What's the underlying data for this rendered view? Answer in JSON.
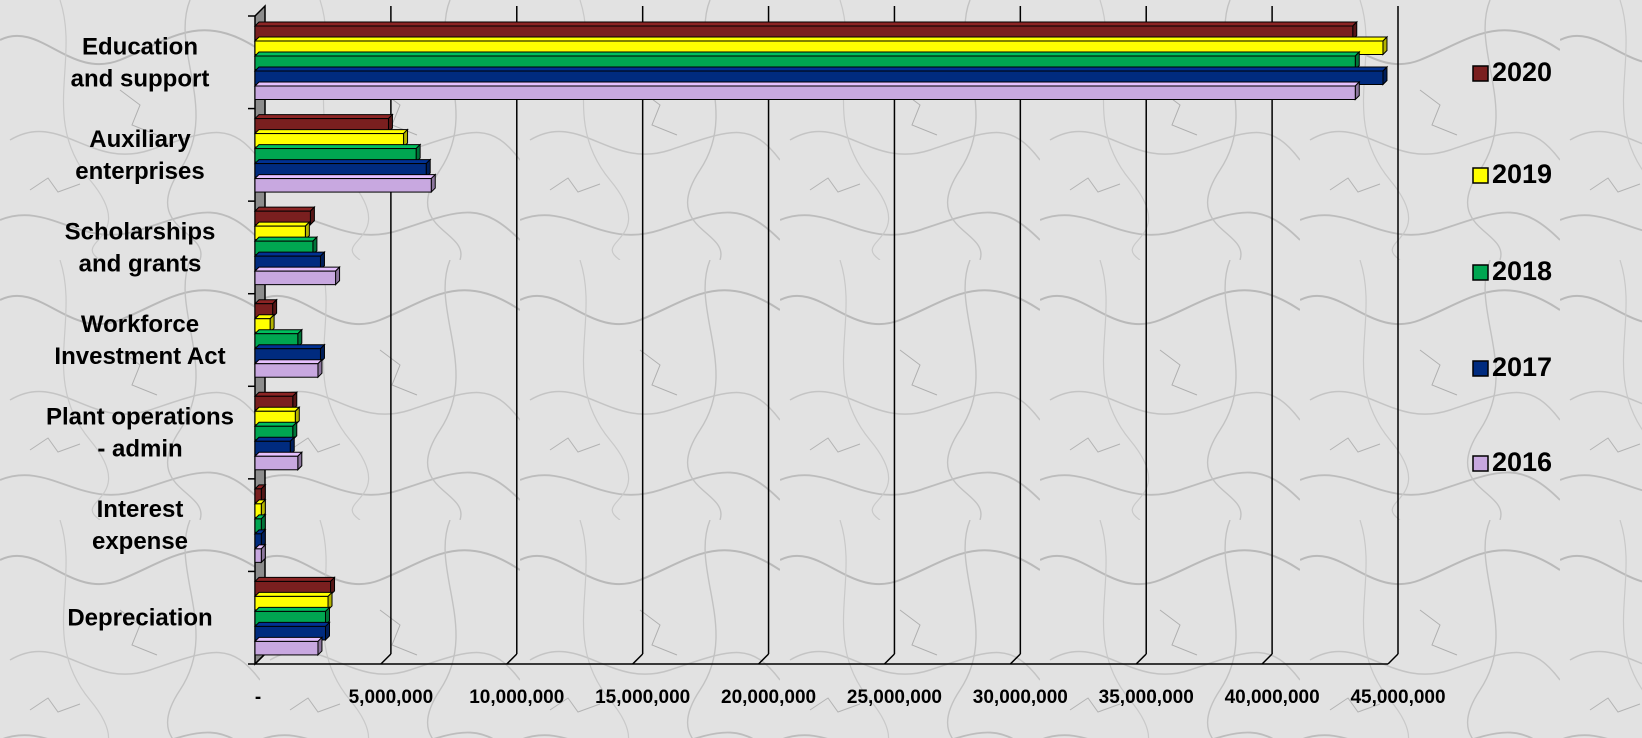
{
  "chart_data": {
    "type": "bar",
    "orientation": "horizontal",
    "categories": [
      [
        "Education",
        "and support"
      ],
      [
        "Auxiliary",
        "enterprises"
      ],
      [
        "Scholarships",
        "and grants"
      ],
      [
        "Workforce",
        "Investment Act"
      ],
      [
        "Plant operations",
        "- admin"
      ],
      [
        "Interest",
        "expense"
      ],
      [
        "Depreciation"
      ]
    ],
    "series": [
      {
        "name": "2020",
        "color": "#7a1f1f",
        "values": [
          43600000,
          5300000,
          2200000,
          700000,
          1500000,
          250000,
          3000000
        ]
      },
      {
        "name": "2019",
        "color": "#ffff00",
        "values": [
          44800000,
          5900000,
          2000000,
          600000,
          1600000,
          250000,
          2900000
        ]
      },
      {
        "name": "2018",
        "color": "#00a651",
        "values": [
          43700000,
          6400000,
          2300000,
          1700000,
          1500000,
          250000,
          2800000
        ]
      },
      {
        "name": "2017",
        "color": "#002b7f",
        "values": [
          44800000,
          6800000,
          2600000,
          2600000,
          1400000,
          250000,
          2800000
        ]
      },
      {
        "name": "2016",
        "color": "#c8a8e0",
        "values": [
          43700000,
          7000000,
          3200000,
          2500000,
          1700000,
          250000,
          2500000
        ]
      }
    ],
    "xlim": [
      0,
      45000000
    ],
    "xticks": [
      0,
      5000000,
      10000000,
      15000000,
      20000000,
      25000000,
      30000000,
      35000000,
      40000000,
      45000000
    ],
    "xtick_labels": [
      "-",
      "5,000,000",
      "10,000,000",
      "15,000,000",
      "20,000,000",
      "25,000,000",
      "30,000,000",
      "35,000,000",
      "40,000,000",
      "45,000,000"
    ],
    "grid": true,
    "legend": "right",
    "legend_order": [
      "2020",
      "2019",
      "2018",
      "2017",
      "2016"
    ]
  }
}
